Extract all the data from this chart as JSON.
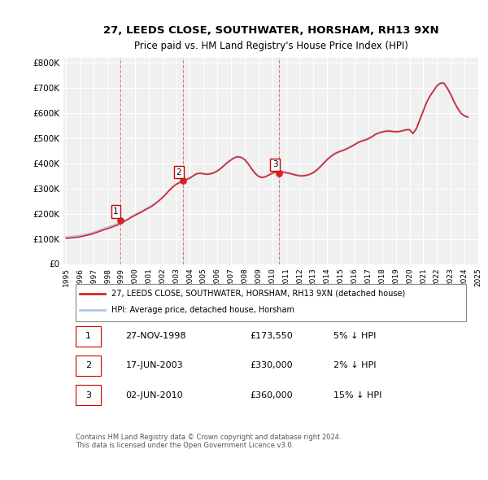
{
  "title": "27, LEEDS CLOSE, SOUTHWATER, HORSHAM, RH13 9XN",
  "subtitle": "Price paid vs. HM Land Registry's House Price Index (HPI)",
  "ylabel": "",
  "ylim": [
    0,
    820000
  ],
  "yticks": [
    0,
    100000,
    200000,
    300000,
    400000,
    500000,
    600000,
    700000,
    800000
  ],
  "ytick_labels": [
    "£0",
    "£100K",
    "£200K",
    "£300K",
    "£400K",
    "£500K",
    "£600K",
    "£700K",
    "£800K"
  ],
  "hpi_color": "#aec6e8",
  "price_color": "#d62728",
  "marker_color": "#d62728",
  "background_color": "#ffffff",
  "plot_bg_color": "#f0f0f0",
  "grid_color": "#ffffff",
  "sale_dates": [
    "1998-11-27",
    "2003-06-17",
    "2010-06-02"
  ],
  "sale_prices": [
    173550,
    330000,
    360000
  ],
  "sale_labels": [
    "1",
    "2",
    "3"
  ],
  "legend_label_price": "27, LEEDS CLOSE, SOUTHWATER, HORSHAM, RH13 9XN (detached house)",
  "legend_label_hpi": "HPI: Average price, detached house, Horsham",
  "table_rows": [
    [
      "1",
      "27-NOV-1998",
      "£173,550",
      "5% ↓ HPI"
    ],
    [
      "2",
      "17-JUN-2003",
      "£330,000",
      "2% ↓ HPI"
    ],
    [
      "3",
      "02-JUN-2010",
      "£360,000",
      "15% ↓ HPI"
    ]
  ],
  "footer": "Contains HM Land Registry data © Crown copyright and database right 2024.\nThis data is licensed under the Open Government Licence v3.0.",
  "hpi_data_x": [
    1995.0,
    1995.25,
    1995.5,
    1995.75,
    1996.0,
    1996.25,
    1996.5,
    1996.75,
    1997.0,
    1997.25,
    1997.5,
    1997.75,
    1998.0,
    1998.25,
    1998.5,
    1998.75,
    1999.0,
    1999.25,
    1999.5,
    1999.75,
    2000.0,
    2000.25,
    2000.5,
    2000.75,
    2001.0,
    2001.25,
    2001.5,
    2001.75,
    2002.0,
    2002.25,
    2002.5,
    2002.75,
    2003.0,
    2003.25,
    2003.5,
    2003.75,
    2004.0,
    2004.25,
    2004.5,
    2004.75,
    2005.0,
    2005.25,
    2005.5,
    2005.75,
    2006.0,
    2006.25,
    2006.5,
    2006.75,
    2007.0,
    2007.25,
    2007.5,
    2007.75,
    2008.0,
    2008.25,
    2008.5,
    2008.75,
    2009.0,
    2009.25,
    2009.5,
    2009.75,
    2010.0,
    2010.25,
    2010.5,
    2010.75,
    2011.0,
    2011.25,
    2011.5,
    2011.75,
    2012.0,
    2012.25,
    2012.5,
    2012.75,
    2013.0,
    2013.25,
    2013.5,
    2013.75,
    2014.0,
    2014.25,
    2014.5,
    2014.75,
    2015.0,
    2015.25,
    2015.5,
    2015.75,
    2016.0,
    2016.25,
    2016.5,
    2016.75,
    2017.0,
    2017.25,
    2017.5,
    2017.75,
    2018.0,
    2018.25,
    2018.5,
    2018.75,
    2019.0,
    2019.25,
    2019.5,
    2019.75,
    2020.0,
    2020.25,
    2020.5,
    2020.75,
    2021.0,
    2021.25,
    2021.5,
    2021.75,
    2022.0,
    2022.25,
    2022.5,
    2022.75,
    2023.0,
    2023.25,
    2023.5,
    2023.75,
    2024.0,
    2024.25
  ],
  "hpi_data_y": [
    107000,
    108000,
    109500,
    111000,
    113000,
    116000,
    119000,
    122000,
    126000,
    131000,
    136000,
    141000,
    146000,
    151000,
    156000,
    161000,
    166000,
    172000,
    179000,
    188000,
    196000,
    203000,
    210000,
    218000,
    225000,
    233000,
    242000,
    253000,
    265000,
    279000,
    294000,
    307000,
    318000,
    326000,
    332000,
    337000,
    343000,
    352000,
    360000,
    362000,
    360000,
    358000,
    360000,
    364000,
    371000,
    381000,
    393000,
    405000,
    415000,
    424000,
    428000,
    425000,
    416000,
    400000,
    380000,
    362000,
    350000,
    345000,
    348000,
    355000,
    362000,
    367000,
    370000,
    368000,
    364000,
    362000,
    358000,
    355000,
    352000,
    352000,
    354000,
    358000,
    365000,
    375000,
    388000,
    402000,
    416000,
    428000,
    438000,
    445000,
    450000,
    455000,
    461000,
    468000,
    476000,
    484000,
    490000,
    494000,
    499000,
    507000,
    516000,
    522000,
    526000,
    529000,
    530000,
    528000,
    527000,
    528000,
    531000,
    535000,
    535000,
    520000,
    540000,
    575000,
    610000,
    645000,
    670000,
    690000,
    710000,
    720000,
    720000,
    700000,
    675000,
    645000,
    620000,
    600000,
    590000,
    585000
  ],
  "price_data_x": [
    1995.0,
    1995.25,
    1995.5,
    1995.75,
    1996.0,
    1996.25,
    1996.5,
    1996.75,
    1997.0,
    1997.25,
    1997.5,
    1997.75,
    1998.0,
    1998.25,
    1998.5,
    1998.75,
    1999.0,
    1999.25,
    1999.5,
    1999.75,
    2000.0,
    2000.25,
    2000.5,
    2000.75,
    2001.0,
    2001.25,
    2001.5,
    2001.75,
    2002.0,
    2002.25,
    2002.5,
    2002.75,
    2003.0,
    2003.25,
    2003.5,
    2003.75,
    2004.0,
    2004.25,
    2004.5,
    2004.75,
    2005.0,
    2005.25,
    2005.5,
    2005.75,
    2006.0,
    2006.25,
    2006.5,
    2006.75,
    2007.0,
    2007.25,
    2007.5,
    2007.75,
    2008.0,
    2008.25,
    2008.5,
    2008.75,
    2009.0,
    2009.25,
    2009.5,
    2009.75,
    2010.0,
    2010.25,
    2010.5,
    2010.75,
    2011.0,
    2011.25,
    2011.5,
    2011.75,
    2012.0,
    2012.25,
    2012.5,
    2012.75,
    2013.0,
    2013.25,
    2013.5,
    2013.75,
    2014.0,
    2014.25,
    2014.5,
    2014.75,
    2015.0,
    2015.25,
    2015.5,
    2015.75,
    2016.0,
    2016.25,
    2016.5,
    2016.75,
    2017.0,
    2017.25,
    2017.5,
    2017.75,
    2018.0,
    2018.25,
    2018.5,
    2018.75,
    2019.0,
    2019.25,
    2019.5,
    2019.75,
    2020.0,
    2020.25,
    2020.5,
    2020.75,
    2021.0,
    2021.25,
    2021.5,
    2021.75,
    2022.0,
    2022.25,
    2022.5,
    2022.75,
    2023.0,
    2023.25,
    2023.5,
    2023.75,
    2024.0,
    2024.25
  ],
  "price_data_y": [
    102000,
    103000,
    104500,
    106000,
    108000,
    111000,
    114000,
    117000,
    121000,
    126000,
    131000,
    136000,
    140000,
    145000,
    150000,
    155000,
    163000,
    170000,
    177000,
    186000,
    193000,
    200000,
    207000,
    215000,
    222000,
    230000,
    240000,
    251000,
    263000,
    277000,
    292000,
    305000,
    316000,
    323000,
    330000,
    335000,
    341000,
    350000,
    358000,
    360000,
    358000,
    356000,
    358000,
    362000,
    369000,
    379000,
    391000,
    403000,
    413000,
    422000,
    426000,
    423000,
    414000,
    398000,
    378000,
    360000,
    348000,
    343000,
    346000,
    353000,
    360000,
    365000,
    368000,
    366000,
    362000,
    360000,
    356000,
    353000,
    350000,
    350000,
    352000,
    356000,
    363000,
    373000,
    386000,
    400000,
    414000,
    426000,
    436000,
    443000,
    448000,
    453000,
    459000,
    466000,
    474000,
    482000,
    488000,
    492000,
    497000,
    505000,
    514000,
    520000,
    524000,
    527000,
    528000,
    526000,
    525000,
    526000,
    529000,
    533000,
    533000,
    518000,
    538000,
    573000,
    608000,
    643000,
    668000,
    688000,
    708000,
    718000,
    718000,
    698000,
    673000,
    643000,
    618000,
    598000,
    588000,
    583000
  ]
}
